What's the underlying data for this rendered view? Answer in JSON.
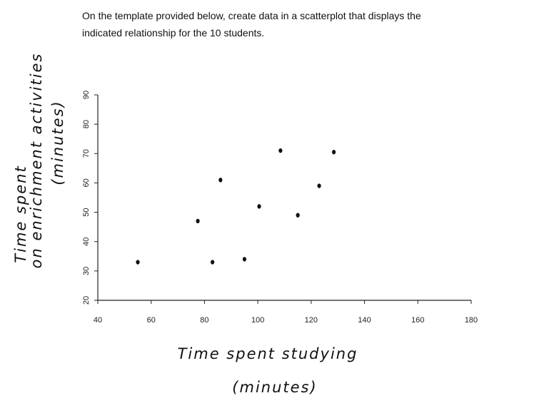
{
  "instructions": [
    "On the template provided below, create data in a scatterplot that displays the",
    "indicated relationship for the 10 students."
  ],
  "chart_data": {
    "type": "scatter",
    "xlabel": [
      "Time spent studying",
      "(minutes)"
    ],
    "ylabel": [
      "Time spent",
      "on enrichment activities",
      "(minutes)"
    ],
    "x": [
      55,
      77.5,
      83,
      86,
      95,
      100.5,
      108.5,
      115,
      123,
      128.5
    ],
    "y": [
      33,
      47,
      33,
      61,
      34,
      52,
      71,
      49,
      59,
      70.5
    ],
    "color": "#111111",
    "xlim": [
      40,
      180
    ],
    "xticks": [
      40,
      60,
      80,
      100,
      120,
      140,
      160,
      180
    ],
    "ylim": [
      20,
      90
    ],
    "yticks": [
      20,
      30,
      40,
      50,
      60,
      70,
      80,
      90
    ],
    "grid": false
  }
}
